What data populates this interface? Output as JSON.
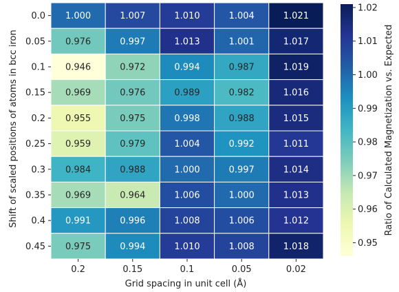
{
  "chart_data": {
    "type": "heatmap",
    "x_categories": [
      "0.2",
      "0.15",
      "0.1",
      "0.05",
      "0.02"
    ],
    "y_categories": [
      "0.0",
      "0.05",
      "0.1",
      "0.15",
      "0.2",
      "0.25",
      "0.3",
      "0.35",
      "0.4",
      "0.45"
    ],
    "values": [
      [
        1.0,
        1.007,
        1.01,
        1.004,
        1.021
      ],
      [
        0.976,
        0.997,
        1.013,
        1.001,
        1.017
      ],
      [
        0.946,
        0.972,
        0.994,
        0.987,
        1.019
      ],
      [
        0.969,
        0.976,
        0.989,
        0.982,
        1.016
      ],
      [
        0.955,
        0.975,
        0.998,
        0.988,
        1.015
      ],
      [
        0.959,
        0.979,
        1.004,
        0.992,
        1.011
      ],
      [
        0.984,
        0.988,
        1.0,
        0.997,
        1.014
      ],
      [
        0.969,
        0.964,
        1.006,
        1.0,
        1.013
      ],
      [
        0.991,
        0.996,
        1.008,
        1.006,
        1.012
      ],
      [
        0.975,
        0.994,
        1.01,
        1.008,
        1.018
      ]
    ],
    "xlabel": "Grid spacing in unit cell (Å)",
    "ylabel": "Shift of scaled positions of atoms in bcc iron",
    "colorbar_label": "Ratio of Calculated Magnetization vs. Expected",
    "colorbar_ticks": [
      "0.95",
      "0.96",
      "0.97",
      "0.98",
      "0.99",
      "1.00",
      "1.01",
      "1.02"
    ],
    "vmin": 0.946,
    "vmax": 1.021,
    "colormap": [
      "#ffffd9",
      "#edf8b1",
      "#c7e9b4",
      "#7fcdbb",
      "#41b6c4",
      "#1d91c0",
      "#225ea8",
      "#253494",
      "#081d58"
    ],
    "annotation_colors": {
      "dark": "#262626",
      "light": "#ffffff"
    },
    "cell_border": "#ffffff"
  }
}
